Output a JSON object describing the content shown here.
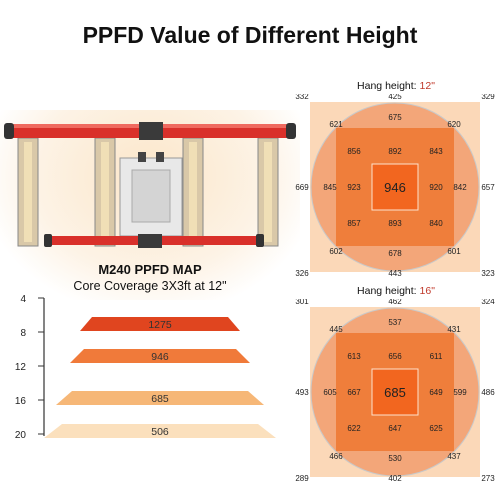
{
  "title": "PPFD Value of Different Height",
  "map": {
    "title": "M240 PPFD MAP",
    "subtitle": "Core Coverage 3X3ft at 12\""
  },
  "height_chart": {
    "ticks": [
      "4",
      "8",
      "12",
      "16",
      "20"
    ],
    "layers": [
      {
        "value": "1275",
        "color": "#e0451f"
      },
      {
        "value": "946",
        "color": "#f07a3a"
      },
      {
        "value": "685",
        "color": "#f6b777"
      },
      {
        "value": "506",
        "color": "#fbe0bd"
      }
    ]
  },
  "grids": [
    {
      "hang_label": "Hang height:",
      "hang_value": "12\"",
      "corners": {
        "tl": "332",
        "tr": "329",
        "bl": "326",
        "br": "323"
      },
      "edges": {
        "top": "425",
        "bottom": "443",
        "left": "669",
        "right": "657"
      },
      "circle": {
        "tl": "621",
        "top": "675",
        "tr": "620",
        "left": "845",
        "right": "842",
        "bl": "602",
        "bottom": "678",
        "br": "601"
      },
      "inner": {
        "tl": "856",
        "top": "892",
        "tr": "843",
        "left": "923",
        "right": "920",
        "bl": "857",
        "bottom": "893",
        "br": "840"
      },
      "center": "946"
    },
    {
      "hang_label": "Hang height:",
      "hang_value": "16\"",
      "corners": {
        "tl": "301",
        "tr": "324",
        "bl": "289",
        "br": "273"
      },
      "edges": {
        "top": "462",
        "bottom": "402",
        "left": "493",
        "right": "486"
      },
      "circle": {
        "tl": "445",
        "top": "537",
        "tr": "431",
        "left": "605",
        "right": "599",
        "bl": "466",
        "bottom": "530",
        "br": "437"
      },
      "inner": {
        "tl": "613",
        "top": "656",
        "tr": "611",
        "left": "667",
        "right": "649",
        "bl": "622",
        "bottom": "647",
        "br": "625"
      },
      "center": "685"
    }
  ],
  "colors": {
    "frame": "#d9302a",
    "grid_outer": "#fbd8b8",
    "grid_circle": "#f3a679",
    "grid_square": "#ef7e3b",
    "grid_center": "#f2661f"
  }
}
